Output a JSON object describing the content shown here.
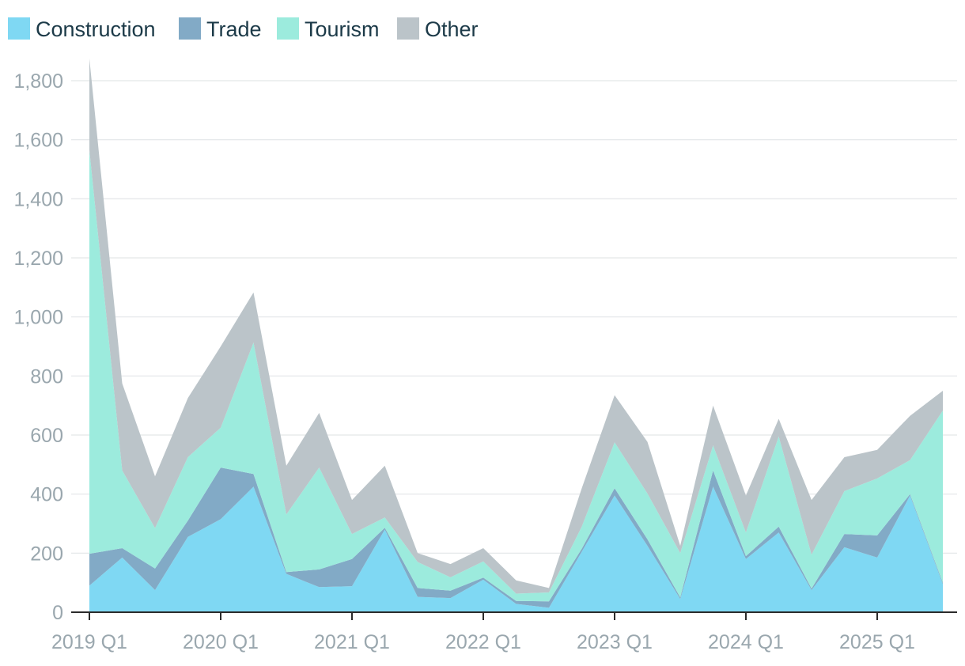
{
  "chart_data": {
    "type": "area",
    "stacked": true,
    "x_tick_labels": [
      "2019 Q1",
      "2020 Q1",
      "2021 Q1",
      "2022 Q1",
      "2023 Q1",
      "2024 Q1",
      "2025 Q1"
    ],
    "y_tick_labels": [
      "0",
      "200",
      "400",
      "600",
      "800",
      "1,000",
      "1,200",
      "1,400",
      "1,600",
      "1,800"
    ],
    "ylim": [
      0,
      1900
    ],
    "grid": true,
    "legend_position": "top-left",
    "x": [
      "2019 Q1",
      "2019 Q2",
      "2019 Q3",
      "2019 Q4",
      "2020 Q1",
      "2020 Q2",
      "2020 Q3",
      "2020 Q4",
      "2021 Q1",
      "2021 Q2",
      "2021 Q3",
      "2021 Q4",
      "2022 Q1",
      "2022 Q2",
      "2022 Q3",
      "2022 Q4",
      "2023 Q1",
      "2023 Q2",
      "2023 Q3",
      "2023 Q4",
      "2024 Q1",
      "2024 Q2",
      "2024 Q3",
      "2024 Q4",
      "2025 Q1",
      "2025 Q2",
      "2025 Q3"
    ],
    "series": [
      {
        "name": "Construction",
        "color": "#7fd8f3",
        "values": [
          90,
          185,
          75,
          255,
          315,
          425,
          130,
          85,
          88,
          280,
          52,
          48,
          110,
          28,
          15,
          205,
          395,
          225,
          45,
          425,
          180,
          270,
          75,
          220,
          185,
          395,
          95
        ]
      },
      {
        "name": "Trade",
        "color": "#82aac6",
        "values": [
          108,
          32,
          73,
          55,
          175,
          43,
          6,
          60,
          92,
          6,
          30,
          25,
          7,
          10,
          22,
          10,
          25,
          22,
          5,
          55,
          10,
          20,
          5,
          45,
          75,
          5,
          5
        ]
      },
      {
        "name": "Tourism",
        "color": "#9cebdd",
        "values": [
          1367,
          263,
          137,
          215,
          135,
          445,
          195,
          345,
          85,
          35,
          88,
          45,
          55,
          25,
          30,
          75,
          155,
          155,
          150,
          85,
          80,
          305,
          115,
          145,
          193,
          115,
          583
        ]
      },
      {
        "name": "Other",
        "color": "#bbc4c9",
        "values": [
          310,
          295,
          175,
          200,
          275,
          170,
          165,
          185,
          115,
          175,
          30,
          45,
          45,
          45,
          15,
          130,
          160,
          175,
          25,
          135,
          125,
          60,
          185,
          115,
          97,
          150,
          67
        ]
      }
    ]
  }
}
